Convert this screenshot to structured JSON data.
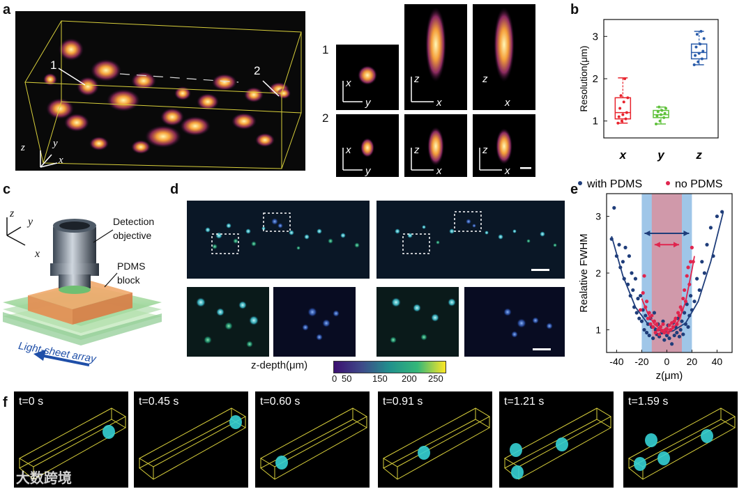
{
  "panels": {
    "a": {
      "label": "a",
      "markers": [
        "1",
        "2"
      ],
      "axis_labels": {
        "z": "z",
        "y": "y",
        "x": "x"
      },
      "psf_rows": [
        {
          "row": "1",
          "views": [
            {
              "v": "x",
              "h": "y"
            },
            {
              "v": "z",
              "h": "x"
            },
            {
              "v": "z",
              "h": "x"
            }
          ]
        },
        {
          "row": "2",
          "views": [
            {
              "v": "x",
              "h": "y"
            },
            {
              "v": "z",
              "h": "x"
            },
            {
              "v": "z",
              "h": "x"
            }
          ]
        }
      ]
    },
    "b": {
      "label": "b"
    },
    "c": {
      "label": "c",
      "objective_label_1": "Detection",
      "objective_label_2": "objective",
      "block_label_1": "PDMS",
      "block_label_2": "block",
      "array_label": "Light-sheet array",
      "axis_labels": {
        "z": "z",
        "y": "y",
        "x": "x"
      }
    },
    "d": {
      "label": "d",
      "colorbar_label": "z-depth(μm)",
      "colorbar_ticks": [
        "0",
        "50",
        "150",
        "200",
        "250"
      ],
      "colors": {
        "viridis_start": "#3b0f70",
        "viridis_mid": "#21918c",
        "viridis_end": "#fde725"
      }
    },
    "e": {
      "label": "e"
    },
    "f": {
      "label": "f",
      "frames": [
        "t=0 s",
        "t=0.45 s",
        "t=0.60 s",
        "t=0.91 s",
        "t=1.21 s",
        "t=1.59 s"
      ]
    }
  },
  "watermark": "大数跨境",
  "chart_data": [
    {
      "type": "box",
      "categories": [
        "x",
        "y",
        "z"
      ],
      "ylabel": "Resolution(μm)",
      "ylim": [
        0.6,
        3.4
      ],
      "yticks": [
        1,
        2,
        3
      ],
      "series": [
        {
          "name": "x",
          "color": "#e8232c",
          "q1": 1.05,
          "median": 1.2,
          "q3": 1.55,
          "whisker_low": 0.95,
          "whisker_high": 2.02,
          "points": [
            0.95,
            1.0,
            1.05,
            1.1,
            1.15,
            1.2,
            1.3,
            1.45,
            1.55,
            1.6,
            2.0
          ]
        },
        {
          "name": "y",
          "color": "#5fc13b",
          "q1": 1.08,
          "median": 1.15,
          "q3": 1.25,
          "whisker_low": 0.93,
          "whisker_high": 1.33,
          "points": [
            0.93,
            1.0,
            1.08,
            1.12,
            1.15,
            1.18,
            1.22,
            1.25,
            1.3,
            1.33
          ]
        },
        {
          "name": "z",
          "color": "#2a5caa",
          "q1": 2.47,
          "median": 2.62,
          "q3": 2.82,
          "whisker_low": 2.33,
          "whisker_high": 3.12,
          "points": [
            2.33,
            2.4,
            2.47,
            2.55,
            2.6,
            2.65,
            2.75,
            2.82,
            2.95,
            3.05,
            3.12
          ]
        }
      ]
    },
    {
      "type": "scatter",
      "xlabel": "z(μm)",
      "ylabel": "Realative FWHM",
      "xlim": [
        -48,
        52
      ],
      "ylim": [
        0.6,
        3.4
      ],
      "xticks": [
        -40,
        -20,
        0,
        20,
        40
      ],
      "yticks": [
        1,
        2,
        3
      ],
      "legend": "top",
      "series": [
        {
          "name": "with PDMS",
          "color": "#1f3d7a",
          "points": [
            [
              -44,
              2.6
            ],
            [
              -42,
              3.15
            ],
            [
              -40,
              2.3
            ],
            [
              -38,
              2.5
            ],
            [
              -37,
              2.1
            ],
            [
              -35,
              2.2
            ],
            [
              -34,
              1.9
            ],
            [
              -33,
              2.45
            ],
            [
              -31,
              1.8
            ],
            [
              -30,
              2.3
            ],
            [
              -29,
              1.6
            ],
            [
              -28,
              2.0
            ],
            [
              -27,
              1.7
            ],
            [
              -26,
              1.4
            ],
            [
              -25,
              1.9
            ],
            [
              -24,
              1.3
            ],
            [
              -23,
              1.55
            ],
            [
              -22,
              1.2
            ],
            [
              -21,
              1.6
            ],
            [
              -20,
              1.15
            ],
            [
              -19,
              1.35
            ],
            [
              -18,
              1.0
            ],
            [
              -17,
              1.25
            ],
            [
              -16,
              0.95
            ],
            [
              -15,
              1.1
            ],
            [
              -14,
              0.9
            ],
            [
              -13,
              1.2
            ],
            [
              -12,
              1.05
            ],
            [
              -11,
              0.85
            ],
            [
              -10,
              1.3
            ],
            [
              -9,
              1.0
            ],
            [
              -8,
              0.92
            ],
            [
              -7,
              1.1
            ],
            [
              -6,
              0.88
            ],
            [
              -5,
              1.05
            ],
            [
              -4,
              0.95
            ],
            [
              -3,
              1.15
            ],
            [
              -2,
              0.82
            ],
            [
              -1,
              1.0
            ],
            [
              0,
              0.9
            ],
            [
              1,
              1.08
            ],
            [
              2,
              0.85
            ],
            [
              3,
              1.0
            ],
            [
              4,
              0.75
            ],
            [
              5,
              1.12
            ],
            [
              6,
              0.9
            ],
            [
              7,
              1.05
            ],
            [
              8,
              0.95
            ],
            [
              9,
              1.2
            ],
            [
              10,
              0.88
            ],
            [
              11,
              1.0
            ],
            [
              12,
              1.15
            ],
            [
              13,
              0.92
            ],
            [
              14,
              1.3
            ],
            [
              15,
              1.1
            ],
            [
              16,
              1.45
            ],
            [
              17,
              1.05
            ],
            [
              18,
              1.25
            ],
            [
              19,
              1.6
            ],
            [
              20,
              1.35
            ],
            [
              22,
              1.5
            ],
            [
              24,
              1.9
            ],
            [
              26,
              1.7
            ],
            [
              28,
              2.2
            ],
            [
              30,
              2.0
            ],
            [
              32,
              2.5
            ],
            [
              35,
              2.8
            ],
            [
              37,
              2.3
            ],
            [
              40,
              3.0
            ],
            [
              44,
              3.08
            ]
          ],
          "fit": [
            [
              -44,
              2.65
            ],
            [
              -35,
              1.95
            ],
            [
              -25,
              1.4
            ],
            [
              -15,
              1.1
            ],
            [
              -5,
              0.98
            ],
            [
              0,
              0.96
            ],
            [
              5,
              0.98
            ],
            [
              15,
              1.12
            ],
            [
              25,
              1.5
            ],
            [
              35,
              2.2
            ],
            [
              45,
              3.08
            ]
          ]
        },
        {
          "name": "no PDMS",
          "color": "#e0254e",
          "points": [
            [
              -21,
              1.35
            ],
            [
              -19,
              1.65
            ],
            [
              -18,
              1.95
            ],
            [
              -17,
              1.4
            ],
            [
              -16,
              1.5
            ],
            [
              -15,
              1.2
            ],
            [
              -14,
              1.3
            ],
            [
              -13,
              1.1
            ],
            [
              -12,
              1.25
            ],
            [
              -11,
              1.05
            ],
            [
              -10,
              1.15
            ],
            [
              -9,
              0.95
            ],
            [
              -8,
              1.1
            ],
            [
              -7,
              1.0
            ],
            [
              -6,
              0.92
            ],
            [
              -5,
              1.05
            ],
            [
              -4,
              0.98
            ],
            [
              -3,
              1.1
            ],
            [
              -2,
              0.95
            ],
            [
              -1,
              1.0
            ],
            [
              0,
              1.02
            ],
            [
              1,
              0.95
            ],
            [
              2,
              1.08
            ],
            [
              3,
              1.0
            ],
            [
              4,
              1.12
            ],
            [
              5,
              1.05
            ],
            [
              6,
              1.15
            ],
            [
              7,
              1.2
            ],
            [
              8,
              1.1
            ],
            [
              9,
              1.3
            ],
            [
              10,
              1.25
            ],
            [
              11,
              1.4
            ],
            [
              12,
              1.35
            ],
            [
              13,
              1.55
            ],
            [
              14,
              1.7
            ],
            [
              15,
              1.5
            ],
            [
              16,
              1.95
            ],
            [
              17,
              2.1
            ],
            [
              18,
              1.8
            ],
            [
              19,
              2.2
            ],
            [
              20,
              2.45
            ],
            [
              21,
              2.2
            ]
          ],
          "fit": [
            [
              -20,
              1.55
            ],
            [
              -15,
              1.28
            ],
            [
              -10,
              1.1
            ],
            [
              -5,
              1.01
            ],
            [
              0,
              0.99
            ],
            [
              5,
              1.02
            ],
            [
              10,
              1.18
            ],
            [
              15,
              1.5
            ],
            [
              20,
              2.05
            ],
            [
              22,
              2.3
            ]
          ]
        }
      ],
      "bands": [
        {
          "name": "with PDMS range",
          "color": "#7fb3e0",
          "x": [
            -20,
            20
          ]
        },
        {
          "name": "no PDMS range",
          "color": "#e08a95",
          "x": [
            -12,
            12
          ]
        }
      ]
    }
  ]
}
